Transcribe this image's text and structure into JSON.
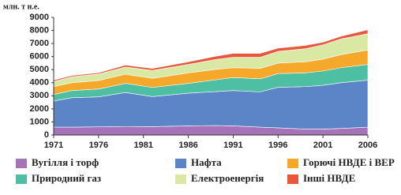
{
  "chart_data": {
    "type": "stacked_area",
    "y_label": "млн. т н.е.",
    "x": [
      1971,
      1973,
      1976,
      1979,
      1982,
      1986,
      1989,
      1991,
      1994,
      1996,
      1999,
      2001,
      2003,
      2006
    ],
    "series": [
      {
        "name": "Вугілля і торф",
        "color": "#a672b8",
        "values": [
          600,
          600,
          620,
          650,
          640,
          700,
          720,
          700,
          600,
          550,
          450,
          450,
          500,
          600
        ]
      },
      {
        "name": "Нафта",
        "color": "#5b85c6",
        "values": [
          2000,
          2250,
          2300,
          2600,
          2300,
          2500,
          2600,
          2700,
          2700,
          3100,
          3250,
          3350,
          3500,
          3600
        ]
      },
      {
        "name": "Природний газ",
        "color": "#4fbfa3",
        "values": [
          500,
          550,
          600,
          700,
          700,
          750,
          900,
          1000,
          1000,
          1050,
          1050,
          1100,
          1150,
          1200
        ]
      },
      {
        "name": "Горючі НВДЕ і ВЕР",
        "color": "#f5a82a",
        "values": [
          600,
          600,
          650,
          700,
          700,
          800,
          800,
          750,
          800,
          800,
          850,
          900,
          1000,
          1100
        ]
      },
      {
        "name": "Електроенергія",
        "color": "#d9e8a2",
        "values": [
          400,
          450,
          500,
          550,
          600,
          650,
          750,
          800,
          850,
          900,
          1000,
          1100,
          1200,
          1250
        ]
      },
      {
        "name": "Інші НВДЕ",
        "color": "#e8573c",
        "values": [
          100,
          100,
          100,
          150,
          150,
          200,
          250,
          300,
          300,
          250,
          250,
          200,
          200,
          300
        ]
      }
    ],
    "xlim": [
      1971,
      2006
    ],
    "xticks": [
      1971,
      1976,
      1981,
      1986,
      1991,
      1996,
      2001,
      2006
    ],
    "ylim": [
      0,
      9000
    ],
    "yticks": [
      0,
      1000,
      2000,
      3000,
      4000,
      5000,
      6000,
      7000,
      8000,
      9000
    ],
    "legend": "bottom"
  }
}
